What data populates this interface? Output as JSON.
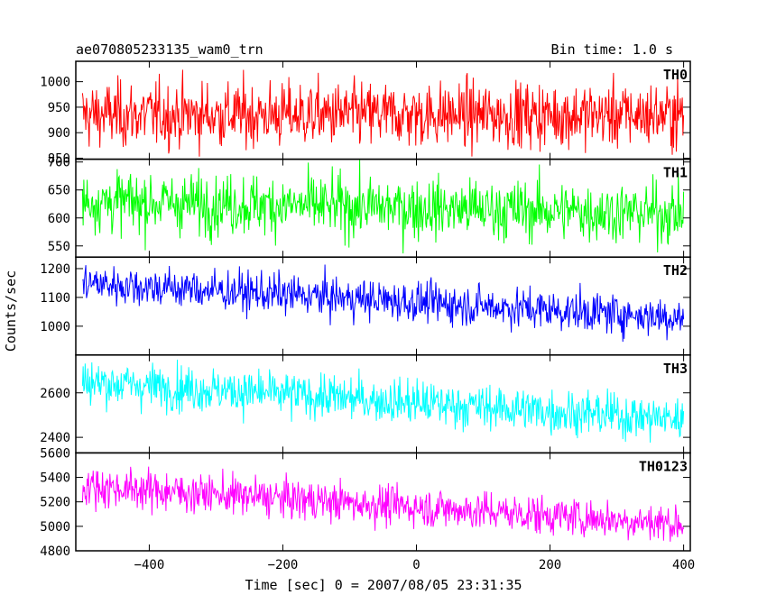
{
  "chart_data": {
    "type": "line",
    "title_left": "ae070805233135_wam0_trn",
    "title_right": "Bin time: 1.0 s",
    "xlabel": "Time [sec] 0 = 2007/08/05 23:31:35",
    "ylabel": "Counts/sec",
    "xlim": [
      -510,
      410
    ],
    "x_ticks": [
      -400,
      -200,
      0,
      200,
      400
    ],
    "x_start": -500,
    "x_end": 400,
    "x_step": 1,
    "panels": [
      {
        "name": "TH0",
        "color": "#ff0000",
        "ylim": [
          848,
          1040
        ],
        "y_ticks": [
          850,
          900,
          950,
          1000
        ],
        "level_start": 935,
        "level_end": 935,
        "noise_sd": 32
      },
      {
        "name": "TH1",
        "color": "#00ff00",
        "ylim": [
          530,
          705
        ],
        "y_ticks": [
          550,
          600,
          650,
          700
        ],
        "level_start": 630,
        "level_end": 608,
        "noise_sd": 27
      },
      {
        "name": "TH2",
        "color": "#0000ff",
        "ylim": [
          900,
          1240
        ],
        "y_ticks": [
          1000,
          1100,
          1200
        ],
        "level_start": 1150,
        "level_end": 1030,
        "noise_sd": 35
      },
      {
        "name": "TH3",
        "color": "#00ffff",
        "ylim": [
          2330,
          2770
        ],
        "y_ticks": [
          2400,
          2600
        ],
        "level_start": 2650,
        "level_end": 2480,
        "noise_sd": 50
      },
      {
        "name": "TH0123",
        "color": "#ff00ff",
        "ylim": [
          4800,
          5600
        ],
        "y_ticks": [
          4800,
          5000,
          5200,
          5400,
          5600
        ],
        "level_start": 5330,
        "level_end": 5020,
        "noise_sd": 80
      }
    ]
  }
}
